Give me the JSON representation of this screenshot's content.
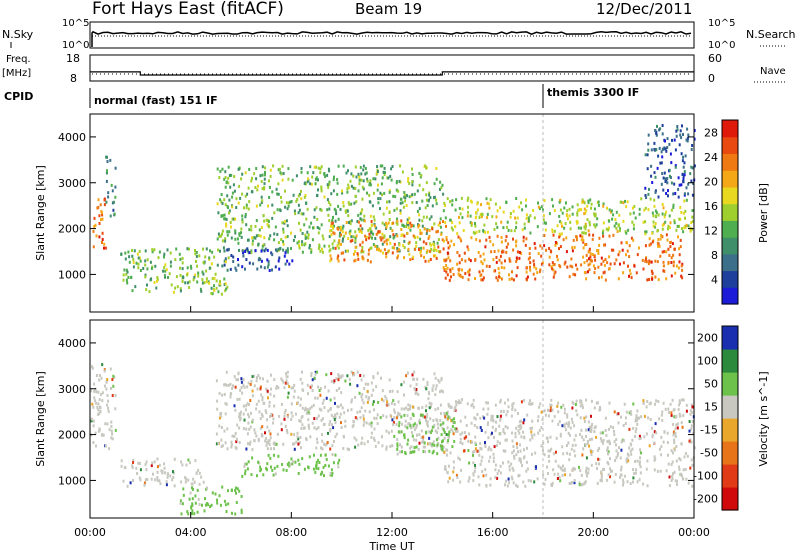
{
  "header": {
    "radar": "Fort Hays East (fitACF)",
    "beam": "Beam 19",
    "date": "12/Dec/2011"
  },
  "params": {
    "nsky_label": "N.Sky",
    "nsearch_label": "N.Search",
    "nsky_ticks": [
      "10^5",
      "10^0"
    ],
    "nsearch_ticks": [
      "10^5",
      "10^0"
    ],
    "freq_label_1": "Freq.",
    "freq_label_2": "[MHz]",
    "freq_ticks": [
      "18",
      "8"
    ],
    "nave_label": "Nave",
    "nave_ticks": [
      "60",
      "0"
    ],
    "cpid_label": "CPID",
    "cpid_blocks": [
      {
        "start_hour": 0,
        "label": "normal (fast) 151 IF"
      },
      {
        "start_hour": 18,
        "label": "themis 3300 IF"
      }
    ],
    "freq_steps": [
      {
        "from_hour": 0,
        "to_hour": 2,
        "mhz": 11.5
      },
      {
        "from_hour": 2,
        "to_hour": 14,
        "mhz": 10.3
      },
      {
        "from_hour": 14,
        "to_hour": 24,
        "mhz": 11.5
      }
    ]
  },
  "colors": {
    "power": [
      "#1c1cd8",
      "#1f3f9c",
      "#3b6f8a",
      "#3f8f6a",
      "#4fae4f",
      "#9fcf2f",
      "#e8d820",
      "#f4a818",
      "#ef7a14",
      "#e84a10",
      "#e01a0a"
    ],
    "velocity": [
      "#1a2fb0",
      "#2c8a3c",
      "#6cc24a",
      "#c8c8c0",
      "#e9a82c",
      "#e8741a",
      "#e03a16",
      "#d00a0a"
    ]
  },
  "chart_data": [
    {
      "type": "heatmap",
      "name": "power",
      "xlabel": "",
      "ylabel": "Slant Range [km]",
      "xlim": [
        0,
        24
      ],
      "ylim": [
        180,
        4500
      ],
      "yticks": [
        "1000",
        "2000",
        "3000",
        "4000"
      ],
      "colorbar_label": "Power [dB]",
      "colorbar_ticks": [
        "4",
        "8",
        "12",
        "16",
        "20",
        "24",
        "28"
      ],
      "colorbar_range": [
        0,
        30
      ],
      "regions": [
        {
          "t0": 0.0,
          "t1": 0.6,
          "r0": 1600,
          "r1": 2700,
          "level": 26
        },
        {
          "t0": 0.6,
          "t1": 1.0,
          "r0": 2300,
          "r1": 3600,
          "level": 10
        },
        {
          "t0": 1.2,
          "t1": 5.5,
          "r0": 600,
          "r1": 1600,
          "level": 14
        },
        {
          "t0": 5.0,
          "t1": 14.0,
          "r0": 1500,
          "r1": 3400,
          "level": 14
        },
        {
          "t0": 9.5,
          "t1": 14.2,
          "r0": 1300,
          "r1": 2200,
          "level": 24
        },
        {
          "t0": 14.0,
          "t1": 23.5,
          "r0": 900,
          "r1": 1900,
          "level": 26
        },
        {
          "t0": 14.0,
          "t1": 24.0,
          "r0": 1900,
          "r1": 2700,
          "level": 17
        },
        {
          "t0": 5.0,
          "t1": 8.0,
          "r0": 1100,
          "r1": 1600,
          "level": 6
        },
        {
          "t0": 22.0,
          "t1": 24.0,
          "r0": 2700,
          "r1": 4300,
          "level": 6
        }
      ]
    },
    {
      "type": "heatmap",
      "name": "velocity",
      "xlabel": "Time UT",
      "ylabel": "Slant Range [km]",
      "xlim": [
        0,
        24
      ],
      "ylim": [
        180,
        4500
      ],
      "xticks": [
        "00:00",
        "04:00",
        "08:00",
        "12:00",
        "16:00",
        "20:00",
        "00:00"
      ],
      "yticks": [
        "1000",
        "2000",
        "3000",
        "4000"
      ],
      "colorbar_label": "Velocity [m s^-1]",
      "colorbar_ticks": [
        "200",
        "100",
        "50",
        "15",
        "-15",
        "-50",
        "-100",
        "-200"
      ],
      "regions": [
        {
          "t0": 0.0,
          "t1": 1.0,
          "r0": 1700,
          "r1": 3600,
          "level": 0
        },
        {
          "t0": 1.2,
          "t1": 4.5,
          "r0": 900,
          "r1": 1500,
          "level": 0
        },
        {
          "t0": 3.5,
          "t1": 6.0,
          "r0": 300,
          "r1": 900,
          "level": 80
        },
        {
          "t0": 6.0,
          "t1": 10.0,
          "r0": 1100,
          "r1": 1600,
          "level": 80
        },
        {
          "t0": 5.0,
          "t1": 14.0,
          "r0": 1700,
          "r1": 3400,
          "level": 0
        },
        {
          "t0": 14.0,
          "t1": 24.0,
          "r0": 900,
          "r1": 2800,
          "level": 0
        },
        {
          "t0": 12.0,
          "t1": 14.5,
          "r0": 1600,
          "r1": 2500,
          "level": 80
        }
      ]
    }
  ]
}
